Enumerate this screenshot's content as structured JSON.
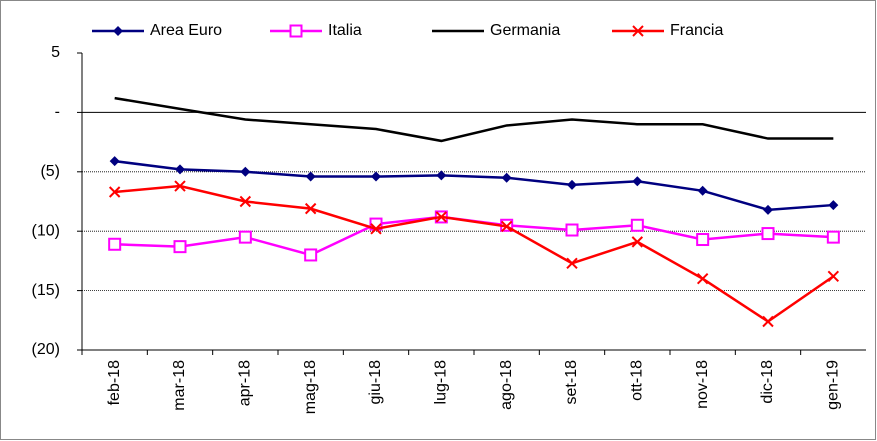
{
  "chart_data": {
    "type": "line",
    "categories": [
      "feb-18",
      "mar-18",
      "apr-18",
      "mag-18",
      "giu-18",
      "lug-18",
      "ago-18",
      "set-18",
      "ott-18",
      "nov-18",
      "dic-18",
      "gen-19"
    ],
    "series": [
      {
        "name": "Area Euro",
        "color": "#000080",
        "marker": "diamond",
        "values": [
          -4.1,
          -4.8,
          -5.0,
          -5.4,
          -5.4,
          -5.3,
          -5.5,
          -6.1,
          -5.8,
          -6.6,
          -8.2,
          -7.8
        ]
      },
      {
        "name": "Italia",
        "color": "#ff00ff",
        "marker": "square",
        "values": [
          -11.1,
          -11.3,
          -10.5,
          -12.0,
          -9.4,
          -8.8,
          -9.5,
          -9.9,
          -9.5,
          -10.7,
          -10.2,
          -10.5
        ]
      },
      {
        "name": "Germania",
        "color": "#000000",
        "marker": "none",
        "values": [
          1.2,
          0.3,
          -0.6,
          -1.0,
          -1.4,
          -2.4,
          -1.1,
          -0.6,
          -1.0,
          -1.0,
          -2.2,
          -2.2
        ]
      },
      {
        "name": "Francia",
        "color": "#ff0000",
        "marker": "x",
        "values": [
          -6.7,
          -6.2,
          -7.5,
          -8.1,
          -9.8,
          -8.8,
          -9.6,
          -12.7,
          -10.9,
          -14.0,
          -17.6,
          -13.8
        ]
      }
    ],
    "ylim": [
      -20,
      5
    ],
    "yticks": [
      {
        "value": -20,
        "label": "(20)"
      },
      {
        "value": -15,
        "label": "(15)"
      },
      {
        "value": -10,
        "label": "(10)"
      },
      {
        "value": -5,
        "label": "(5)"
      },
      {
        "value": 0,
        "label": "-"
      },
      5
    ],
    "grid": true,
    "legend": "top"
  }
}
